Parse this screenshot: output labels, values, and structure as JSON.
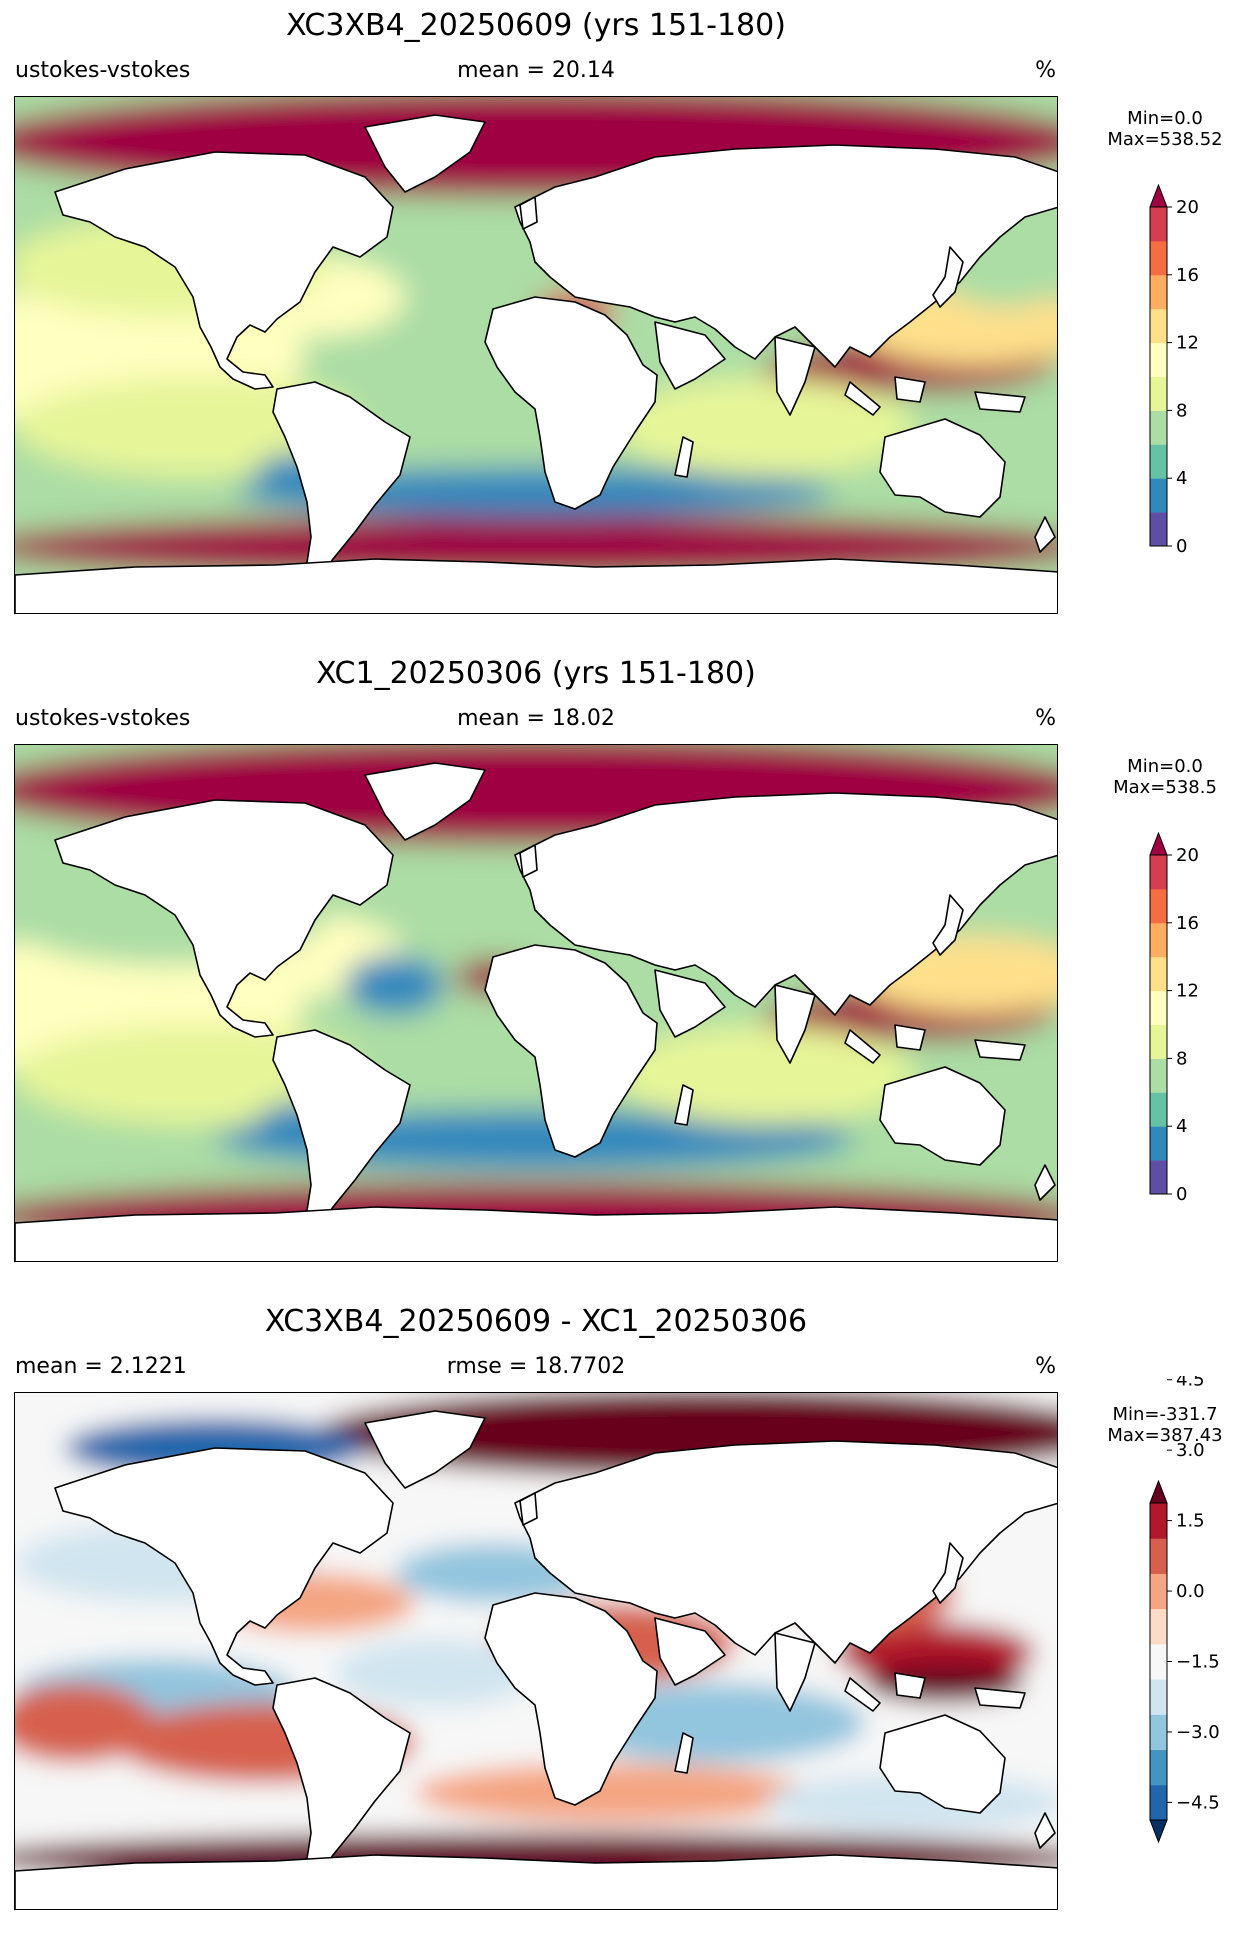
{
  "panels": [
    {
      "title": "XC3XB4_20250609 (yrs 151-180)",
      "left_label": "ustokes-vstokes",
      "center_label": "mean = 20.14",
      "right_label": "%",
      "colorbar": {
        "min_text": "Min=0.0",
        "max_text": "Max=538.52",
        "ticks": [
          "0",
          "4",
          "8",
          "12",
          "16",
          "20"
        ],
        "palette": "spectral",
        "extend": "max"
      }
    },
    {
      "title": "XC1_20250306 (yrs 151-180)",
      "left_label": "ustokes-vstokes",
      "center_label": "mean = 18.02",
      "right_label": "%",
      "colorbar": {
        "min_text": "Min=0.0",
        "max_text": "Max=538.5",
        "ticks": [
          "0",
          "4",
          "8",
          "12",
          "16",
          "20"
        ],
        "palette": "spectral",
        "extend": "max"
      }
    },
    {
      "title": "XC3XB4_20250609 - XC1_20250306",
      "left_label": "mean = 2.1221",
      "center_label": "rmse = 18.7702",
      "right_label": "%",
      "colorbar": {
        "min_text": "Min=-331.7",
        "max_text": "Max=387.43",
        "ticks": [
          "−4.5",
          "−3.0",
          "−1.5",
          "0.0",
          "1.5",
          "3.0",
          "4.5"
        ],
        "palette": "rdbu",
        "extend": "both"
      }
    }
  ],
  "colors": {
    "spectral": [
      "#5e4fa2",
      "#3288bd",
      "#66c2a5",
      "#abdda4",
      "#e6f598",
      "#ffffbf",
      "#fee08b",
      "#fdae61",
      "#f46d43",
      "#d53e4f",
      "#9e0142"
    ],
    "rdbu": [
      "#053061",
      "#2166ac",
      "#4393c3",
      "#92c5de",
      "#d1e5f0",
      "#f7f7f7",
      "#fddbc7",
      "#f4a582",
      "#d6604d",
      "#b2182b",
      "#67001f"
    ]
  }
}
